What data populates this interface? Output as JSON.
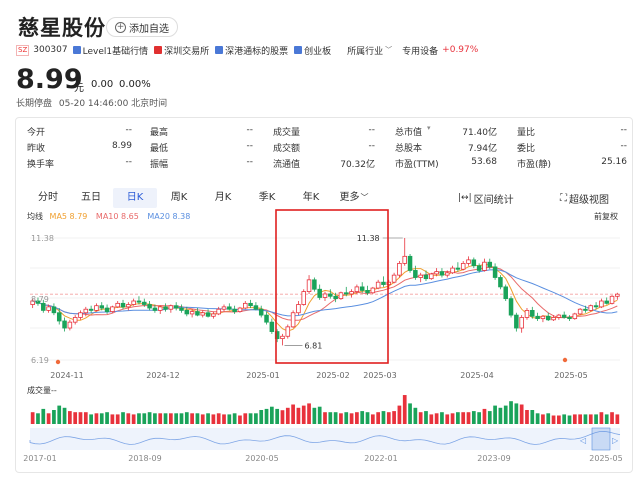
{
  "header": {
    "name": "慈星股份",
    "add_watch": "添加自选",
    "exchange_badge": "SZ",
    "code": "300307",
    "tags": [
      {
        "label": "Level1基础行情",
        "color": "#4a78d6"
      },
      {
        "label": "深圳交易所",
        "color": "#e03030"
      },
      {
        "label": "深港通标的股票",
        "color": "#4a78d6"
      },
      {
        "label": "创业板",
        "color": "#4a78d6"
      }
    ],
    "industry_label": "所属行业",
    "industry_name": "专用设备",
    "industry_change": "+0.97%",
    "price": "8.99",
    "unit": "元",
    "change": "0.00",
    "change_pct": "0.00%",
    "status": "长期停盘",
    "datetime": "05-20 14:46:00 北京时间"
  },
  "stats": [
    [
      {
        "label": "今开",
        "value": "--"
      },
      {
        "label": "最高",
        "value": "--"
      },
      {
        "label": "成交量",
        "value": "--"
      },
      {
        "label": "总市值",
        "value": "71.40亿"
      },
      {
        "label": "量比",
        "value": "--"
      }
    ],
    [
      {
        "label": "昨收",
        "value": "8.99"
      },
      {
        "label": "最低",
        "value": "--"
      },
      {
        "label": "成交额",
        "value": "--"
      },
      {
        "label": "总股本",
        "value": "7.94亿"
      },
      {
        "label": "委比",
        "value": "--"
      }
    ],
    [
      {
        "label": "换手率",
        "value": "--"
      },
      {
        "label": "振幅",
        "value": "--"
      },
      {
        "label": "流通值",
        "value": "70.32亿"
      },
      {
        "label": "市盈(TTM)",
        "value": "53.68"
      },
      {
        "label": "市盈(静)",
        "value": "25.16"
      }
    ]
  ],
  "tabs": [
    "分时",
    "五日",
    "日K",
    "周K",
    "月K",
    "季K",
    "年K",
    "更多"
  ],
  "active_tab": "日K",
  "tools": {
    "interval": "区间统计",
    "super": "超级视图"
  },
  "ma": {
    "title": "均线",
    "ma5": "MA5 8.79",
    "ma10": "MA10 8.65",
    "ma20": "MA20 8.38",
    "fuquan": "前复权"
  },
  "colors": {
    "up": "#e8323c",
    "down": "#1aa35a",
    "ma5": "#f0a030",
    "ma10": "#e86a6a",
    "ma20": "#5a8fe0",
    "accent": "#2a5bd7"
  },
  "chart_data": {
    "type": "candlestick",
    "y_axis_labels": [
      "11.38",
      "8.79",
      "6.19"
    ],
    "x_axis_labels": [
      "2024-11",
      "2024-12",
      "2025-01",
      "2025-02",
      "2025-03",
      "2025-04",
      "2025-05"
    ],
    "annotations": {
      "high": "11.38",
      "low": "6.81"
    },
    "ylim": [
      6.19,
      11.38
    ],
    "candles": [
      [
        8.55,
        8.8,
        8.4,
        8.7
      ],
      [
        8.7,
        8.85,
        8.5,
        8.6
      ],
      [
        8.6,
        8.75,
        8.2,
        8.3
      ],
      [
        8.3,
        8.55,
        8.2,
        8.45
      ],
      [
        8.45,
        8.6,
        8.1,
        8.2
      ],
      [
        8.2,
        8.4,
        7.7,
        7.85
      ],
      [
        7.85,
        8.0,
        7.4,
        7.55
      ],
      [
        7.55,
        7.9,
        7.45,
        7.8
      ],
      [
        7.8,
        8.1,
        7.7,
        8.0
      ],
      [
        8.0,
        8.3,
        7.9,
        8.2
      ],
      [
        8.2,
        8.45,
        8.05,
        8.35
      ],
      [
        8.35,
        8.5,
        8.2,
        8.3
      ],
      [
        8.3,
        8.6,
        8.25,
        8.5
      ],
      [
        8.5,
        8.65,
        8.3,
        8.4
      ],
      [
        8.4,
        8.55,
        8.15,
        8.25
      ],
      [
        8.25,
        8.5,
        8.2,
        8.45
      ],
      [
        8.45,
        8.7,
        8.4,
        8.6
      ],
      [
        8.6,
        8.75,
        8.35,
        8.45
      ],
      [
        8.45,
        8.65,
        8.3,
        8.55
      ],
      [
        8.55,
        8.8,
        8.5,
        8.7
      ],
      [
        8.7,
        8.9,
        8.55,
        8.65
      ],
      [
        8.65,
        8.8,
        8.45,
        8.55
      ],
      [
        8.55,
        8.7,
        8.3,
        8.4
      ],
      [
        8.4,
        8.55,
        8.2,
        8.3
      ],
      [
        8.3,
        8.5,
        8.15,
        8.45
      ],
      [
        8.45,
        8.6,
        8.25,
        8.35
      ],
      [
        8.35,
        8.55,
        8.2,
        8.5
      ],
      [
        8.5,
        8.65,
        8.3,
        8.4
      ],
      [
        8.4,
        8.55,
        8.2,
        8.3
      ],
      [
        8.3,
        8.45,
        8.05,
        8.15
      ],
      [
        8.15,
        8.35,
        8.0,
        8.25
      ],
      [
        8.25,
        8.4,
        8.05,
        8.1
      ],
      [
        8.1,
        8.3,
        8.0,
        8.2
      ],
      [
        8.2,
        8.35,
        8.0,
        8.05
      ],
      [
        8.05,
        8.25,
        7.95,
        8.15
      ],
      [
        8.15,
        8.45,
        8.1,
        8.35
      ],
      [
        8.35,
        8.55,
        8.25,
        8.45
      ],
      [
        8.45,
        8.6,
        8.3,
        8.35
      ],
      [
        8.35,
        8.5,
        8.15,
        8.25
      ],
      [
        8.25,
        8.45,
        8.2,
        8.4
      ],
      [
        8.4,
        8.7,
        8.35,
        8.6
      ],
      [
        8.6,
        8.75,
        8.4,
        8.5
      ],
      [
        8.5,
        8.65,
        8.3,
        8.35
      ],
      [
        8.35,
        8.5,
        8.0,
        8.1
      ],
      [
        8.1,
        8.25,
        7.7,
        7.8
      ],
      [
        7.8,
        7.95,
        7.3,
        7.4
      ],
      [
        7.4,
        7.5,
        6.95,
        7.1
      ],
      [
        7.1,
        7.3,
        6.81,
        7.2
      ],
      [
        7.2,
        7.7,
        7.1,
        7.6
      ],
      [
        7.6,
        8.3,
        7.55,
        8.2
      ],
      [
        8.2,
        8.7,
        8.1,
        8.55
      ],
      [
        8.55,
        9.2,
        8.5,
        9.1
      ],
      [
        9.1,
        9.8,
        9.0,
        9.6
      ],
      [
        9.6,
        9.7,
        9.1,
        9.2
      ],
      [
        9.2,
        9.4,
        8.75,
        8.85
      ],
      [
        8.85,
        9.1,
        8.7,
        9.0
      ],
      [
        9.0,
        9.2,
        8.8,
        8.9
      ],
      [
        8.9,
        9.05,
        8.65,
        8.8
      ],
      [
        8.8,
        9.1,
        8.75,
        9.05
      ],
      [
        9.05,
        9.3,
        8.9,
        9.0
      ],
      [
        9.0,
        9.2,
        8.85,
        9.1
      ],
      [
        9.1,
        9.4,
        9.0,
        9.3
      ],
      [
        9.3,
        9.5,
        9.05,
        9.15
      ],
      [
        9.15,
        9.35,
        8.95,
        9.05
      ],
      [
        9.05,
        9.3,
        9.0,
        9.25
      ],
      [
        9.25,
        9.6,
        9.2,
        9.5
      ],
      [
        9.5,
        9.75,
        9.3,
        9.4
      ],
      [
        9.4,
        9.6,
        9.2,
        9.5
      ],
      [
        9.5,
        9.9,
        9.45,
        9.8
      ],
      [
        9.8,
        10.4,
        9.7,
        10.3
      ],
      [
        10.3,
        11.38,
        10.2,
        10.6
      ],
      [
        10.6,
        10.7,
        9.9,
        10.0
      ],
      [
        10.0,
        10.2,
        9.6,
        9.7
      ],
      [
        9.7,
        9.9,
        9.5,
        9.8
      ],
      [
        9.8,
        10.0,
        9.55,
        9.65
      ],
      [
        9.65,
        9.9,
        9.6,
        9.85
      ],
      [
        9.85,
        10.1,
        9.75,
        9.95
      ],
      [
        9.95,
        10.1,
        9.7,
        9.8
      ],
      [
        9.8,
        10.0,
        9.7,
        9.9
      ],
      [
        9.9,
        10.2,
        9.85,
        10.1
      ],
      [
        10.1,
        10.35,
        9.95,
        10.05
      ],
      [
        10.05,
        10.4,
        10.0,
        10.3
      ],
      [
        10.3,
        10.6,
        10.2,
        10.45
      ],
      [
        10.45,
        10.55,
        10.1,
        10.2
      ],
      [
        10.2,
        10.3,
        9.9,
        10.0
      ],
      [
        10.0,
        10.5,
        9.95,
        10.35
      ],
      [
        10.35,
        10.5,
        10.05,
        10.15
      ],
      [
        10.15,
        10.3,
        9.6,
        9.7
      ],
      [
        9.7,
        9.8,
        9.2,
        9.3
      ],
      [
        9.3,
        9.4,
        8.7,
        8.8
      ],
      [
        8.8,
        8.9,
        8.0,
        8.1
      ],
      [
        8.1,
        8.2,
        7.4,
        7.55
      ],
      [
        7.55,
        8.1,
        7.35,
        8.0
      ],
      [
        8.0,
        8.4,
        7.9,
        8.3
      ],
      [
        8.3,
        8.45,
        7.95,
        8.05
      ],
      [
        8.05,
        8.2,
        7.85,
        7.95
      ],
      [
        7.95,
        8.1,
        7.8,
        8.05
      ],
      [
        8.05,
        8.2,
        7.85,
        7.9
      ],
      [
        7.9,
        8.1,
        7.85,
        8.0
      ],
      [
        8.0,
        8.15,
        7.9,
        8.1
      ],
      [
        8.1,
        8.25,
        7.95,
        8.0
      ],
      [
        8.0,
        8.1,
        7.85,
        7.95
      ],
      [
        7.95,
        8.2,
        7.9,
        8.15
      ],
      [
        8.15,
        8.4,
        8.1,
        8.35
      ],
      [
        8.35,
        8.5,
        8.2,
        8.3
      ],
      [
        8.3,
        8.55,
        8.25,
        8.5
      ],
      [
        8.5,
        8.65,
        8.35,
        8.45
      ],
      [
        8.45,
        8.8,
        8.4,
        8.7
      ],
      [
        8.7,
        8.85,
        8.55,
        8.6
      ],
      [
        8.6,
        8.95,
        8.55,
        8.9
      ],
      [
        8.9,
        9.05,
        8.75,
        8.99
      ]
    ]
  }
}
